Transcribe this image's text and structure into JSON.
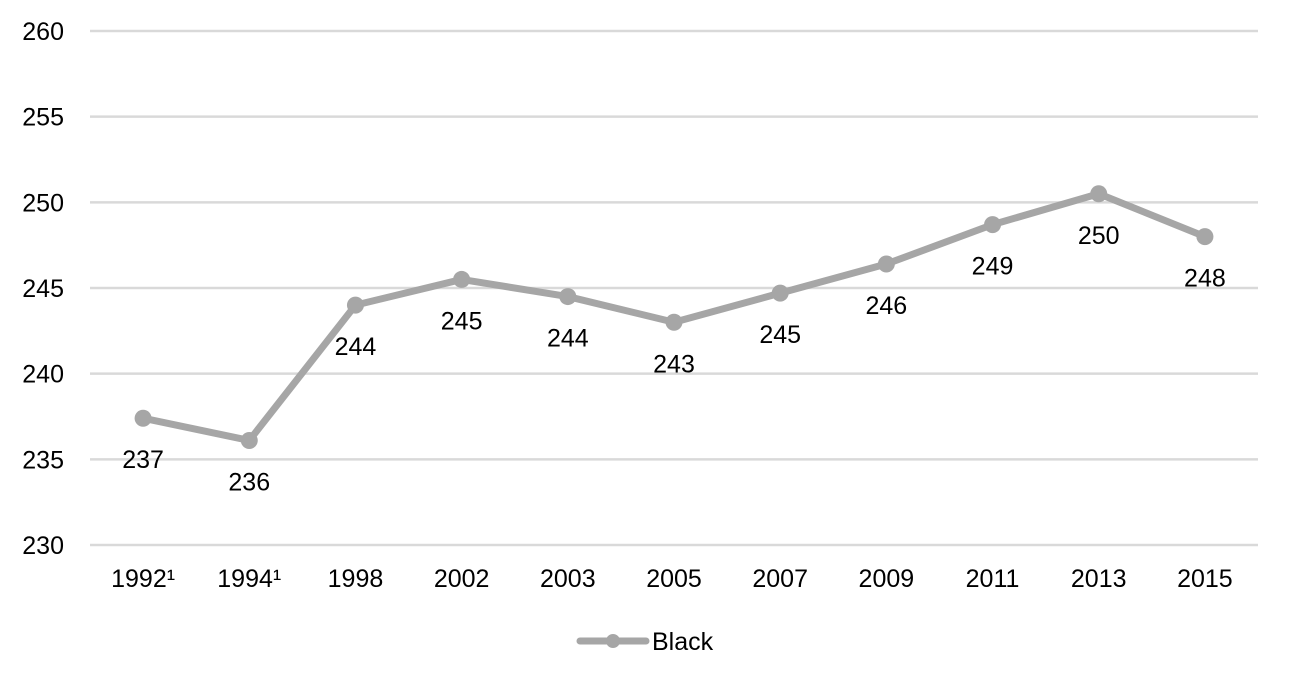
{
  "chart_data": {
    "type": "line",
    "categories": [
      "1992¹",
      "1994¹",
      "1998",
      "2002",
      "2003",
      "2005",
      "2007",
      "2009",
      "2011",
      "2013",
      "2015"
    ],
    "series": [
      {
        "name": "Black",
        "values": [
          237.4,
          236.1,
          244.0,
          245.5,
          244.5,
          243.0,
          244.7,
          246.4,
          248.7,
          250.5,
          248.0
        ],
        "data_labels": [
          "237",
          "236",
          "244",
          "245",
          "244",
          "243",
          "245",
          "246",
          "249",
          "250",
          "248"
        ],
        "color": "#a6a6a6"
      }
    ],
    "ylim": [
      230,
      260
    ],
    "yticks": [
      230,
      235,
      240,
      245,
      250,
      255,
      260
    ],
    "grid": true,
    "gridline_color": "#d9d9d9",
    "legend_position": "bottom",
    "title": "",
    "xlabel": "",
    "ylabel": ""
  }
}
